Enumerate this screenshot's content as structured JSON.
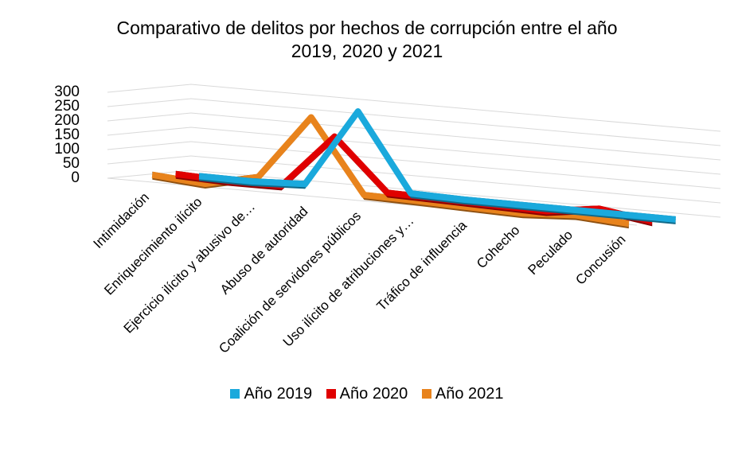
{
  "chart_data": {
    "type": "line",
    "style": "3d-ribbon",
    "title_lines": [
      "Comparativo de delitos por hechos de corrupción entre el año",
      "2019,  2020 y 2021"
    ],
    "categories": [
      "Intimidación",
      "Enriquecimiento ilícito",
      "Ejercicio ilícito y abusivo de…",
      "Abuso de autoridad",
      "Coalición de servidores públicos",
      "Uso ilícito de atribuciones y…",
      "Tráfico de influencia",
      "Cohecho",
      "Peculado",
      "Concusión"
    ],
    "y_ticks": [
      "0",
      "50",
      "100",
      "150",
      "200",
      "250",
      "300"
    ],
    "ylim": [
      0,
      300
    ],
    "grid": true,
    "legend_position": "bottom",
    "series": [
      {
        "name": "Año 2019",
        "color": "#1aa9dc",
        "values": [
          5,
          3,
          10,
          280,
          10,
          5,
          4,
          3,
          2,
          1
        ]
      },
      {
        "name": "Año 2020",
        "color": "#e00000",
        "values": [
          20,
          12,
          12,
          200,
          20,
          15,
          10,
          5,
          30,
          2
        ]
      },
      {
        "name": "Año 2021",
        "color": "#e8831c",
        "values": [
          25,
          10,
          50,
          275,
          20,
          16,
          10,
          5,
          15,
          2
        ]
      }
    ]
  }
}
